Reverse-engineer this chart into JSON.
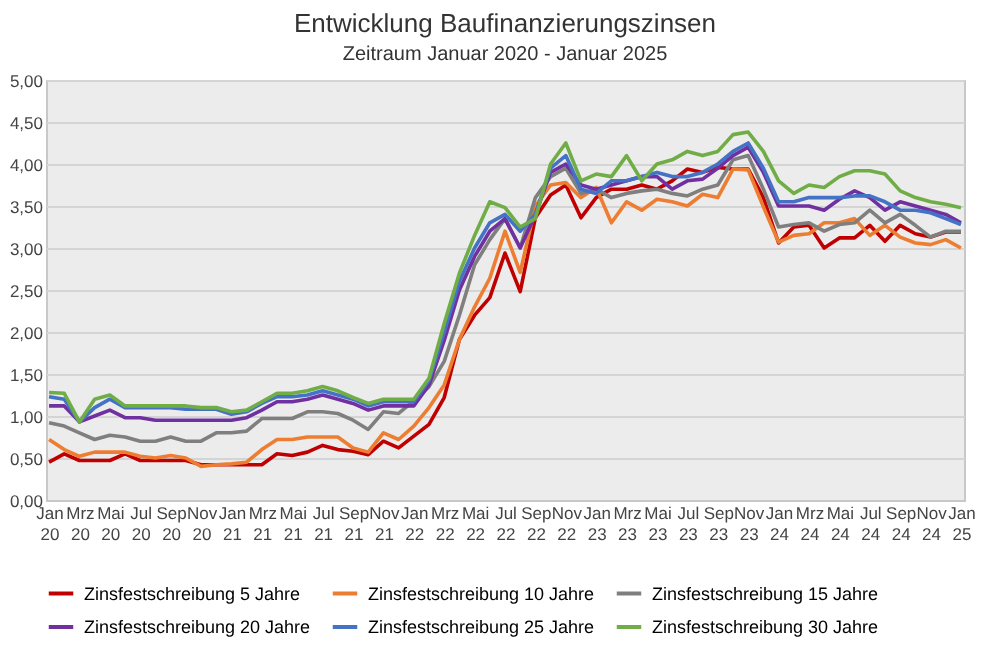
{
  "chart_data": {
    "type": "line",
    "title": "Entwicklung Baufinanzierungszinsen",
    "subtitle": "Zeitraum Januar 2020 - Januar 2025",
    "categories": [
      "Jan 20",
      null,
      "Mrz 20",
      null,
      "Mai 20",
      null,
      "Jul 20",
      null,
      "Sep 20",
      null,
      "Nov 20",
      null,
      "Jan 21",
      null,
      "Mrz 21",
      null,
      "Mai 21",
      null,
      "Jul 21",
      null,
      "Sep 21",
      null,
      "Nov 21",
      null,
      "Jan 22",
      null,
      "Mrz 22",
      null,
      "Mai 22",
      null,
      "Jul 22",
      null,
      "Sep 22",
      null,
      "Nov 22",
      null,
      "Jan 23",
      null,
      "Mrz 23",
      null,
      "Mai 23",
      null,
      "Jul 23",
      null,
      "Sep 23",
      null,
      "Nov 23",
      null,
      "Jan 24",
      null,
      "Mrz 24",
      null,
      "Mai 24",
      null,
      "Jul 24",
      null,
      "Sep 24",
      null,
      "Nov 24",
      null,
      "Jan 25"
    ],
    "series": [
      {
        "name": "Zinsfestschreibung 5 Jahre",
        "color": "#c00000",
        "values": [
          0.45,
          0.55,
          0.47,
          0.47,
          0.47,
          0.55,
          0.47,
          0.47,
          0.47,
          0.47,
          0.42,
          0.42,
          0.42,
          0.42,
          0.42,
          0.55,
          0.53,
          0.57,
          0.65,
          0.6,
          0.58,
          0.54,
          0.7,
          0.62,
          0.76,
          0.9,
          1.22,
          1.91,
          2.2,
          2.41,
          2.94,
          2.48,
          3.36,
          3.63,
          3.75,
          3.36,
          3.6,
          3.7,
          3.7,
          3.75,
          3.7,
          3.8,
          3.94,
          3.9,
          3.96,
          3.94,
          3.94,
          3.6,
          3.06,
          3.25,
          3.27,
          3.0,
          3.12,
          3.12,
          3.27,
          3.08,
          3.27,
          3.17,
          3.13,
          3.19,
          3.19
        ]
      },
      {
        "name": "Zinsfestschreibung 10 Jahre",
        "color": "#ed7d31",
        "values": [
          0.72,
          0.6,
          0.52,
          0.57,
          0.57,
          0.57,
          0.52,
          0.5,
          0.53,
          0.5,
          0.4,
          0.42,
          0.43,
          0.45,
          0.6,
          0.72,
          0.72,
          0.75,
          0.75,
          0.75,
          0.62,
          0.57,
          0.8,
          0.72,
          0.88,
          1.1,
          1.37,
          1.91,
          2.3,
          2.64,
          3.2,
          2.71,
          3.5,
          3.75,
          3.78,
          3.6,
          3.72,
          3.3,
          3.55,
          3.45,
          3.58,
          3.55,
          3.5,
          3.64,
          3.6,
          3.94,
          3.93,
          3.49,
          3.07,
          3.15,
          3.17,
          3.3,
          3.3,
          3.35,
          3.15,
          3.27,
          3.13,
          3.06,
          3.04,
          3.1,
          3.0
        ]
      },
      {
        "name": "Zinsfestschreibung 15 Jahre",
        "color": "#7f7f7f",
        "values": [
          0.92,
          0.88,
          0.8,
          0.72,
          0.77,
          0.75,
          0.7,
          0.7,
          0.75,
          0.7,
          0.7,
          0.8,
          0.8,
          0.82,
          0.97,
          0.97,
          0.97,
          1.05,
          1.05,
          1.03,
          0.95,
          0.84,
          1.05,
          1.03,
          1.18,
          1.35,
          1.65,
          2.2,
          2.8,
          3.1,
          3.35,
          3.0,
          3.6,
          3.85,
          3.95,
          3.65,
          3.7,
          3.6,
          3.65,
          3.68,
          3.7,
          3.65,
          3.62,
          3.7,
          3.75,
          4.05,
          4.1,
          3.7,
          3.25,
          3.28,
          3.3,
          3.2,
          3.28,
          3.3,
          3.45,
          3.3,
          3.4,
          3.27,
          3.13,
          3.2,
          3.2
        ]
      },
      {
        "name": "Zinsfestschreibung 20 Jahre",
        "color": "#7030a0",
        "values": [
          1.12,
          1.12,
          0.93,
          1.0,
          1.07,
          0.98,
          0.98,
          0.95,
          0.95,
          0.95,
          0.95,
          0.95,
          0.95,
          0.98,
          1.07,
          1.17,
          1.17,
          1.2,
          1.25,
          1.2,
          1.15,
          1.07,
          1.12,
          1.12,
          1.12,
          1.37,
          1.9,
          2.5,
          2.9,
          3.2,
          3.35,
          3.0,
          3.4,
          3.9,
          4.0,
          3.75,
          3.7,
          3.75,
          3.8,
          3.85,
          3.85,
          3.7,
          3.8,
          3.82,
          3.95,
          4.1,
          4.2,
          3.9,
          3.5,
          3.5,
          3.5,
          3.45,
          3.58,
          3.68,
          3.6,
          3.45,
          3.55,
          3.5,
          3.45,
          3.4,
          3.3
        ]
      },
      {
        "name": "Zinsfestschreibung 25 Jahre",
        "color": "#4472c4",
        "values": [
          1.23,
          1.2,
          0.93,
          1.1,
          1.2,
          1.1,
          1.1,
          1.1,
          1.1,
          1.08,
          1.08,
          1.08,
          1.02,
          1.05,
          1.15,
          1.23,
          1.23,
          1.25,
          1.3,
          1.25,
          1.2,
          1.12,
          1.17,
          1.17,
          1.17,
          1.42,
          2.0,
          2.6,
          3.0,
          3.3,
          3.4,
          3.2,
          3.4,
          3.95,
          4.1,
          3.7,
          3.65,
          3.8,
          3.8,
          3.85,
          3.9,
          3.85,
          3.85,
          3.9,
          4.0,
          4.15,
          4.25,
          3.95,
          3.55,
          3.55,
          3.6,
          3.6,
          3.6,
          3.62,
          3.62,
          3.55,
          3.45,
          3.45,
          3.42,
          3.35,
          3.28
        ]
      },
      {
        "name": "Zinsfestschreibung 30 Jahre",
        "color": "#70ad47",
        "values": [
          1.28,
          1.27,
          0.93,
          1.2,
          1.25,
          1.12,
          1.12,
          1.12,
          1.12,
          1.12,
          1.1,
          1.1,
          1.05,
          1.07,
          1.17,
          1.27,
          1.27,
          1.3,
          1.35,
          1.3,
          1.22,
          1.15,
          1.2,
          1.2,
          1.2,
          1.45,
          2.1,
          2.7,
          3.15,
          3.55,
          3.48,
          3.25,
          3.35,
          4.0,
          4.25,
          3.8,
          3.88,
          3.85,
          4.1,
          3.8,
          4.0,
          4.05,
          4.15,
          4.1,
          4.15,
          4.35,
          4.38,
          4.15,
          3.8,
          3.65,
          3.75,
          3.72,
          3.85,
          3.92,
          3.92,
          3.88,
          3.68,
          3.6,
          3.55,
          3.52,
          3.48
        ]
      }
    ],
    "ylim": [
      0,
      5
    ],
    "yticks": [
      {
        "value": 0,
        "label": "0,00"
      },
      {
        "value": 0.5,
        "label": "0,50"
      },
      {
        "value": 1,
        "label": "1,00"
      },
      {
        "value": 1.5,
        "label": "1,50"
      },
      {
        "value": 2,
        "label": "2,00"
      },
      {
        "value": 2.5,
        "label": "2,50"
      },
      {
        "value": 3,
        "label": "3,00"
      },
      {
        "value": 3.5,
        "label": "3,50"
      },
      {
        "value": 4,
        "label": "4,00"
      },
      {
        "value": 4.5,
        "label": "4,50"
      },
      {
        "value": 5,
        "label": "5,00"
      }
    ],
    "grid": "y",
    "legend": "bottom",
    "line_style": "solid"
  }
}
